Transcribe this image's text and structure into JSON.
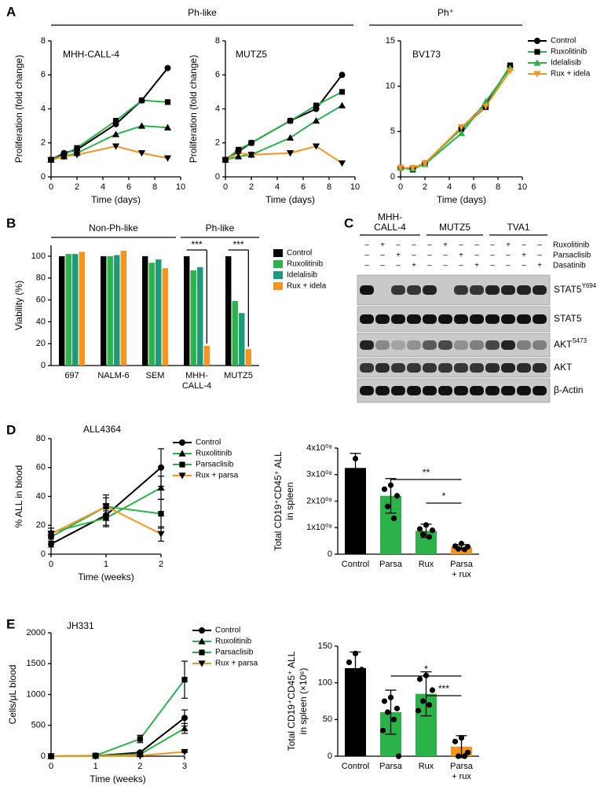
{
  "panel_labels": [
    "A",
    "B",
    "C",
    "D",
    "E"
  ],
  "chart_data": [
    {
      "type": "line",
      "title": "MHH-CALL-4",
      "group_label": "Ph-like",
      "x_label": "Time (days)",
      "y_label": "Proliferation (fold change)",
      "x": [
        0,
        1,
        2,
        5,
        7,
        9
      ],
      "xlim": [
        0,
        10
      ],
      "xticks": [
        0,
        2,
        4,
        6,
        8,
        10
      ],
      "ylim": [
        0,
        8
      ],
      "yticks": [
        0,
        2,
        4,
        6,
        8
      ],
      "series": [
        {
          "name": "Control",
          "color": "#000000",
          "marker": "circle",
          "marker_color": "#000000",
          "values": [
            1,
            1.4,
            1.6,
            3.1,
            4.5,
            6.4
          ]
        },
        {
          "name": "Ruxolitinib",
          "color": "#2bb34a",
          "marker": "square",
          "marker_color": "#000000",
          "values": [
            1,
            1.3,
            1.7,
            3.3,
            4.5,
            4.4
          ]
        },
        {
          "name": "Idelalisib",
          "color": "#2bb34a",
          "marker": "triangle",
          "marker_color": "#000000",
          "values": [
            1,
            1.2,
            1.4,
            2.5,
            3.0,
            2.9
          ]
        },
        {
          "name": "Rux + idela",
          "color": "#f7941d",
          "marker": "triangle-down",
          "marker_color": "#000000",
          "values": [
            1,
            1.2,
            1.3,
            1.8,
            1.4,
            1.1
          ]
        }
      ]
    },
    {
      "type": "line",
      "title": "MUTZ5",
      "x_label": "Time (days)",
      "y_label": "Proliferation (fold change)",
      "x": [
        0,
        1,
        2,
        5,
        7,
        9
      ],
      "xlim": [
        0,
        10
      ],
      "xticks": [
        0,
        2,
        4,
        6,
        8,
        10
      ],
      "ylim": [
        0,
        8
      ],
      "yticks": [
        0,
        2,
        4,
        6,
        8
      ],
      "series": [
        {
          "name": "Control",
          "color": "#000000",
          "marker": "circle",
          "marker_color": "#000000",
          "values": [
            1,
            1.5,
            2.0,
            3.3,
            4.0,
            6.0
          ]
        },
        {
          "name": "Ruxolitinib",
          "color": "#2bb34a",
          "marker": "square",
          "marker_color": "#000000",
          "values": [
            1,
            1.6,
            2.0,
            3.3,
            4.2,
            5.0
          ]
        },
        {
          "name": "Idelalisib",
          "color": "#2bb34a",
          "marker": "triangle",
          "marker_color": "#000000",
          "values": [
            1,
            1.2,
            1.3,
            2.3,
            3.3,
            4.2
          ]
        },
        {
          "name": "Rux + idela",
          "color": "#f7941d",
          "marker": "triangle-down",
          "marker_color": "#000000",
          "values": [
            1,
            1.4,
            1.3,
            1.4,
            1.8,
            0.8
          ]
        }
      ]
    },
    {
      "type": "line",
      "title": "BV173",
      "group_label": "Ph⁺",
      "x_label": "Time (days)",
      "legend": true,
      "x": [
        0,
        1,
        2,
        5,
        7,
        9
      ],
      "xlim": [
        0,
        10
      ],
      "xticks": [
        0,
        2,
        4,
        6,
        8,
        10
      ],
      "ylim": [
        0,
        15
      ],
      "yticks": [
        0,
        5,
        10,
        15
      ],
      "series": [
        {
          "name": "Control",
          "color": "#000000",
          "marker": "circle",
          "marker_color": "#000000",
          "values": [
            1,
            0.9,
            1.5,
            5.4,
            8.0,
            12.2
          ]
        },
        {
          "name": "Ruxolitinib",
          "color": "#2bb34a",
          "marker": "square",
          "marker_color": "#000000",
          "values": [
            1,
            0.8,
            1.5,
            5.3,
            7.7,
            12.3
          ]
        },
        {
          "name": "Idelalisib",
          "color": "#2bb34a",
          "marker": "triangle",
          "marker_color": "#2bb34a",
          "values": [
            1,
            0.9,
            1.4,
            4.8,
            8.3,
            12.0
          ]
        },
        {
          "name": "Rux + idela",
          "color": "#f7941d",
          "marker": "triangle-down",
          "marker_color": "#f7941d",
          "values": [
            1,
            1.0,
            1.5,
            5.5,
            7.8,
            11.7
          ]
        }
      ]
    },
    {
      "type": "grouped_bar",
      "group_labels": [
        "Non-Ph-like",
        "Ph-like"
      ],
      "y_label": "Viability (%)",
      "legend": true,
      "categories": [
        "697",
        "NALM-6",
        "SEM",
        [
          "MHH-",
          "CALL-4"
        ],
        "MUTZ5"
      ],
      "ylim": [
        0,
        110
      ],
      "yticks": [
        0,
        20,
        40,
        60,
        80,
        100
      ],
      "annotations": [
        "***",
        "***"
      ],
      "series": [
        {
          "name": "Control",
          "color": "#000000",
          "values": [
            100,
            100,
            100,
            100,
            100
          ]
        },
        {
          "name": "Ruxolitinib",
          "color": "#2bb34a",
          "values": [
            102,
            100,
            94,
            87,
            59
          ]
        },
        {
          "name": "Idelalisib",
          "color": "#1a9c7b",
          "values": [
            102,
            101,
            97,
            90,
            48
          ]
        },
        {
          "name": "Rux + idela",
          "color": "#f7941d",
          "values": [
            104,
            105,
            89,
            18,
            15
          ]
        }
      ]
    },
    {
      "type": "line",
      "title": "ALL4364",
      "x_label": "Time (weeks)",
      "y_label": "% ALL in blood",
      "legend": true,
      "x": [
        0,
        1,
        2
      ],
      "xlim": [
        0,
        2
      ],
      "xticks": [
        0,
        1,
        2
      ],
      "ylim": [
        0,
        80
      ],
      "yticks": [
        0,
        20,
        40,
        60,
        80
      ],
      "series": [
        {
          "name": "Control",
          "color": "#000000",
          "marker": "circle",
          "marker_color": "#000000",
          "values": [
            7,
            27,
            60
          ],
          "errors": [
            2,
            8,
            13
          ]
        },
        {
          "name": "Ruxolitinib",
          "color": "#2bb34a",
          "marker": "triangle",
          "marker_color": "#000000",
          "values": [
            15,
            25,
            46
          ],
          "errors": [
            3,
            5,
            8
          ]
        },
        {
          "name": "Parsaclisib",
          "color": "#2bb34a",
          "marker": "square",
          "marker_color": "#000000",
          "values": [
            12,
            33,
            28
          ],
          "errors": [
            3,
            8,
            10
          ]
        },
        {
          "name": "Rux + parsa",
          "color": "#f7941d",
          "marker": "triangle-down",
          "marker_color": "#000000",
          "values": [
            14,
            33,
            14
          ],
          "errors": [
            2,
            6,
            5
          ]
        }
      ]
    },
    {
      "type": "bar",
      "y_label": [
        "Total CD19⁺CD45⁺ ALL",
        "in spleen"
      ],
      "categories": [
        "Control",
        "Parsa",
        "Rux",
        [
          "Parsa",
          "+ rux"
        ]
      ],
      "values": [
        325000000,
        220000000,
        88000000,
        27000000
      ],
      "errors": [
        55000000,
        65000000,
        25000000,
        9000000
      ],
      "colors": [
        "#000000",
        "#2bb34a",
        "#2bb34a",
        "#f7941d"
      ],
      "points": [
        [
          360000000,
          285000000
        ],
        [
          260000000,
          245000000,
          220000000,
          180000000,
          135000000
        ],
        [
          110000000,
          95000000,
          90000000,
          75000000,
          65000000
        ],
        [
          40000000,
          30000000,
          28000000,
          20000000,
          18000000
        ]
      ],
      "ylim": [
        0,
        400000000
      ],
      "yticks": [
        0,
        {
          "value": 100000000,
          "label": "1x10⁰⁸"
        },
        {
          "value": 200000000,
          "label": "2x10⁰⁸"
        },
        {
          "value": 300000000,
          "label": "3x10⁰⁸"
        },
        {
          "value": 400000000,
          "label": "4x10⁰⁸"
        }
      ],
      "annotations": [
        "**",
        "*"
      ]
    },
    {
      "type": "line",
      "title": "JH331",
      "x_label": "Time (weeks)",
      "y_label": "Cells/μL blood",
      "legend": true,
      "x": [
        0,
        1,
        2,
        3
      ],
      "xlim": [
        0,
        3
      ],
      "xticks": [
        0,
        1,
        2,
        3
      ],
      "ylim": [
        0,
        2000
      ],
      "yticks": [
        0,
        500,
        1000,
        1500,
        2000
      ],
      "series": [
        {
          "name": "Control",
          "color": "#000000",
          "marker": "circle",
          "marker_color": "#000000",
          "values": [
            0,
            5,
            60,
            620
          ],
          "errors": [
            0,
            5,
            20,
            130
          ]
        },
        {
          "name": "Ruxolitinib",
          "color": "#2bb34a",
          "marker": "triangle",
          "marker_color": "#000000",
          "values": [
            0,
            5,
            30,
            450
          ],
          "errors": [
            0,
            5,
            15,
            80
          ]
        },
        {
          "name": "Parsaclisib",
          "color": "#2bb34a",
          "marker": "square",
          "marker_color": "#000000",
          "values": [
            0,
            10,
            280,
            1240
          ],
          "errors": [
            0,
            5,
            60,
            300
          ]
        },
        {
          "name": "Rux + parsa",
          "color": "#f7941d",
          "marker": "triangle-down",
          "marker_color": "#000000",
          "values": [
            0,
            0,
            10,
            70
          ],
          "errors": [
            0,
            0,
            5,
            10
          ]
        }
      ]
    },
    {
      "type": "bar",
      "y_label": [
        "Total CD19⁺CD45⁺ ALL",
        "in spleen (×10⁶)"
      ],
      "categories": [
        "Control",
        "Parsa",
        "Rux",
        [
          "Parsa",
          "+ rux"
        ]
      ],
      "values": [
        120,
        60,
        85,
        13
      ],
      "errors": [
        22,
        30,
        30,
        15
      ],
      "colors": [
        "#000000",
        "#2bb34a",
        "#2bb34a",
        "#f7941d"
      ],
      "points": [
        [
          140,
          128,
          118
        ],
        [
          80,
          75,
          65,
          60,
          50,
          35,
          0
        ],
        [
          110,
          105,
          90,
          75,
          70,
          62
        ],
        [
          25,
          20,
          5,
          0,
          0
        ]
      ],
      "ylim": [
        0,
        150
      ],
      "yticks": [
        0,
        50,
        100,
        150
      ],
      "annotations": [
        "*",
        "***"
      ]
    }
  ],
  "blot": {
    "cell_lines": [
      [
        "MHH-",
        "CALL-4"
      ],
      "MUTZ5",
      "TVA1"
    ],
    "treatments": [
      "Ruxolitinib",
      "Parsaclisib",
      "Dasatinib"
    ],
    "signs": [
      [
        "–",
        "+",
        "–",
        "–",
        "–",
        "+",
        "–",
        "–",
        "–",
        "+",
        "–",
        "–"
      ],
      [
        "–",
        "–",
        "+",
        "–",
        "–",
        "–",
        "+",
        "–",
        "–",
        "–",
        "+",
        "–"
      ],
      [
        "–",
        "–",
        "–",
        "+",
        "–",
        "–",
        "–",
        "+",
        "–",
        "–",
        "–",
        "+"
      ]
    ],
    "proteins": [
      {
        "name": "STAT5",
        "sup": "Y694"
      },
      {
        "name": "STAT5"
      },
      {
        "name": "AKT",
        "sup": "S473"
      },
      {
        "name": "AKT"
      },
      {
        "name": "β-Actin"
      }
    ]
  }
}
